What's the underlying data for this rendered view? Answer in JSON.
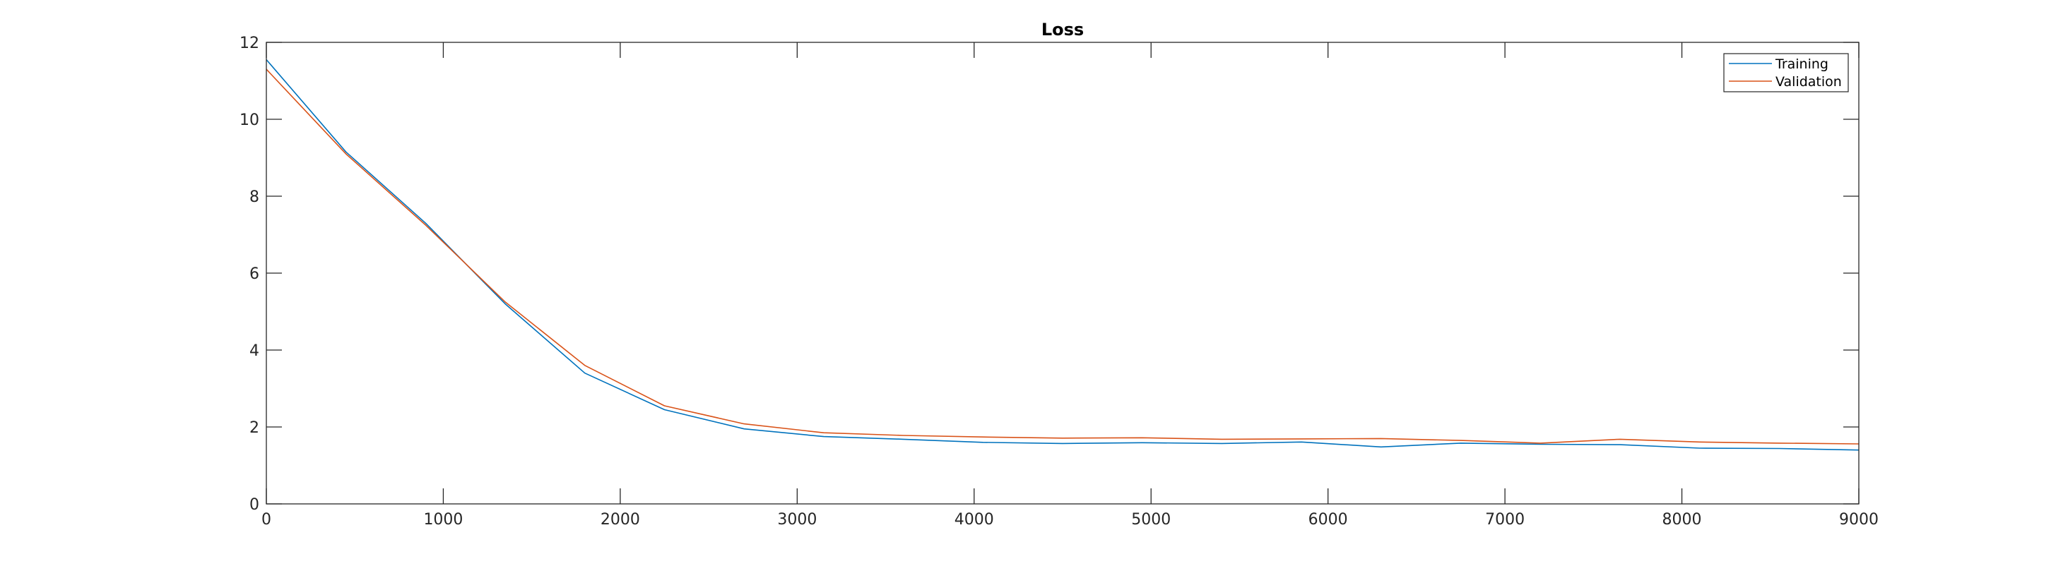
{
  "chart_data": {
    "type": "line",
    "title": "Loss",
    "xlabel": "",
    "ylabel": "",
    "xlim": [
      0,
      9000
    ],
    "ylim": [
      0,
      12
    ],
    "xticks": [
      0,
      1000,
      2000,
      3000,
      4000,
      5000,
      6000,
      7000,
      8000,
      9000
    ],
    "yticks": [
      0,
      2,
      4,
      6,
      8,
      10,
      12
    ],
    "grid": false,
    "legend_position": "top-right",
    "series": [
      {
        "name": "Training",
        "color": "#0072BD",
        "x": [
          0,
          450,
          900,
          1350,
          1800,
          2250,
          2700,
          3150,
          3600,
          4050,
          4500,
          4950,
          5400,
          5850,
          6300,
          6750,
          7200,
          7650,
          8100,
          8550,
          9000
        ],
        "y": [
          11.55,
          9.15,
          7.3,
          5.2,
          3.4,
          2.45,
          1.95,
          1.75,
          1.68,
          1.6,
          1.57,
          1.59,
          1.57,
          1.61,
          1.48,
          1.58,
          1.55,
          1.54,
          1.45,
          1.44,
          1.4
        ]
      },
      {
        "name": "Validation",
        "color": "#D95319",
        "x": [
          0,
          450,
          900,
          1350,
          1800,
          2250,
          2700,
          3150,
          3600,
          4050,
          4500,
          4950,
          5400,
          5850,
          6300,
          6750,
          7200,
          7650,
          8100,
          8550,
          9000
        ],
        "y": [
          11.3,
          9.1,
          7.25,
          5.25,
          3.6,
          2.55,
          2.08,
          1.85,
          1.78,
          1.74,
          1.71,
          1.72,
          1.68,
          1.69,
          1.7,
          1.65,
          1.58,
          1.68,
          1.61,
          1.58,
          1.56
        ]
      }
    ]
  }
}
